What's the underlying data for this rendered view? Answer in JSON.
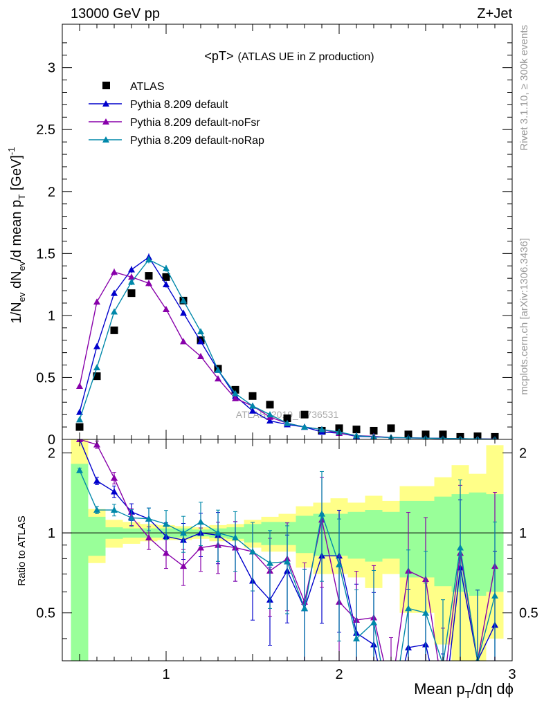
{
  "header": {
    "left": "13000 GeV pp",
    "right": "Z+Jet"
  },
  "side": {
    "rivet": "Rivet 3.1.10, ≥ 300k events",
    "mcplots": "mcplots.cern.ch [arXiv:1306.3436]"
  },
  "watermark": "ATLAS_2019_I1736531",
  "colors": {
    "ATLAS": "#000000",
    "default": "#0000cc",
    "noFsr": "#8800aa",
    "noRap": "#0088aa",
    "band_outer": "#ffff88",
    "band_inner": "#99ff99"
  },
  "chart_data": [
    {
      "type": "line",
      "title": "<pT>",
      "subtitle": "(ATLAS UE in Z production)",
      "ylabel_parts": {
        "a": "1/N",
        "b": "ev",
        "c": " dN",
        "d": "ev",
        "e": "/d mean p",
        "f": "T",
        "g": " [GeV]",
        "h": "-1"
      },
      "xlim": [
        0.4,
        3.0
      ],
      "ylim": [
        0,
        3.35
      ],
      "yticks": [
        0,
        0.5,
        1,
        1.5,
        2,
        2.5,
        3
      ],
      "ytick_labels": [
        "0",
        "0.5",
        "1",
        "1.5",
        "2",
        "2.5",
        "3"
      ],
      "x": [
        0.5,
        0.6,
        0.7,
        0.8,
        0.9,
        1.0,
        1.1,
        1.2,
        1.3,
        1.4,
        1.5,
        1.6,
        1.7,
        1.8,
        1.9,
        2.0,
        2.1,
        2.2,
        2.3,
        2.4,
        2.5,
        2.6,
        2.7,
        2.8,
        2.9
      ],
      "series": [
        {
          "name": "ATLAS",
          "marker": "square",
          "values": [
            0.1,
            0.51,
            0.88,
            1.18,
            1.32,
            1.31,
            1.12,
            0.8,
            0.57,
            0.4,
            0.35,
            0.28,
            0.17,
            0.2,
            0.07,
            0.09,
            0.08,
            0.07,
            0.09,
            0.04,
            0.04,
            0.04,
            0.02,
            0.025,
            0.02
          ]
        },
        {
          "name": "Pythia 8.209 default",
          "marker": "triangle",
          "values": [
            0.22,
            0.75,
            1.18,
            1.37,
            1.47,
            1.25,
            1.02,
            0.79,
            0.56,
            0.35,
            0.23,
            0.15,
            0.12,
            0.1,
            0.06,
            0.05,
            0.025,
            0.02,
            0.015,
            0.012,
            0.01,
            0.008,
            0.005,
            0.004,
            0.002
          ]
        },
        {
          "name": "Pythia 8.209 default-noFsr",
          "marker": "triangle",
          "values": [
            0.43,
            1.11,
            1.35,
            1.31,
            1.26,
            1.05,
            0.79,
            0.67,
            0.49,
            0.33,
            0.27,
            0.18,
            0.13,
            0.1,
            0.08,
            0.05,
            0.03,
            0.025,
            0.015,
            0.012,
            0.01,
            0.008,
            0.005,
            0.004,
            0.003
          ]
        },
        {
          "name": "Pythia 8.209 default-noRap",
          "marker": "triangle",
          "values": [
            0.16,
            0.58,
            1.03,
            1.27,
            1.45,
            1.38,
            1.12,
            0.87,
            0.56,
            0.37,
            0.27,
            0.2,
            0.13,
            0.1,
            0.08,
            0.06,
            0.03,
            0.02,
            0.015,
            0.012,
            0.01,
            0.008,
            0.006,
            0.004,
            0.002
          ]
        }
      ]
    },
    {
      "type": "line",
      "ylabel": "Ratio to ATLAS",
      "xlabel_parts": {
        "a": "Mean p",
        "b": "T",
        "c": "/dη dϕ"
      },
      "xlim": [
        0.4,
        3.0
      ],
      "ylim": [
        0.33,
        2.25
      ],
      "xticks": [
        1,
        2,
        3
      ],
      "xtick_labels": [
        "1",
        "2",
        "3"
      ],
      "yticks": [
        0.5,
        1,
        2
      ],
      "ytick_labels": [
        "0.5",
        "1",
        "2"
      ],
      "bands": {
        "outer_lo": [
          0.33,
          0.77,
          0.88,
          0.91,
          0.93,
          0.94,
          0.94,
          0.95,
          0.93,
          0.93,
          0.88,
          0.85,
          0.85,
          0.74,
          0.7,
          0.7,
          0.68,
          0.62,
          0.7,
          0.5,
          0.5,
          0.38,
          0.33,
          0.33,
          0.4
        ],
        "outer_hi": [
          2.25,
          1.23,
          1.12,
          1.1,
          1.08,
          1.07,
          1.06,
          1.05,
          1.07,
          1.08,
          1.12,
          1.15,
          1.18,
          1.26,
          1.3,
          1.35,
          1.3,
          1.38,
          1.32,
          1.5,
          1.5,
          1.62,
          1.8,
          1.67,
          2.14
        ],
        "inner_lo": [
          0.33,
          0.82,
          0.95,
          0.96,
          0.96,
          0.96,
          0.96,
          0.97,
          0.96,
          0.95,
          0.92,
          0.9,
          0.9,
          0.84,
          0.82,
          0.82,
          0.8,
          0.78,
          0.8,
          0.68,
          0.68,
          0.63,
          0.6,
          0.58,
          0.6
        ],
        "inner_hi": [
          1.82,
          1.15,
          1.05,
          1.04,
          1.04,
          1.04,
          1.04,
          1.03,
          1.04,
          1.05,
          1.08,
          1.1,
          1.1,
          1.16,
          1.18,
          1.18,
          1.2,
          1.22,
          1.2,
          1.32,
          1.32,
          1.37,
          1.4,
          1.42,
          1.4
        ]
      },
      "series": [
        {
          "name": "Pythia 8.209 default",
          "values": [
            2.25,
            1.57,
            1.43,
            1.2,
            1.13,
            0.97,
            0.94,
            1.0,
            0.98,
            0.88,
            0.66,
            0.56,
            0.72,
            0.52,
            0.82,
            0.82,
            0.42,
            0.38,
            0.2,
            0.37,
            0.38,
            0.2,
            0.74,
            0.33,
            0.45
          ]
        },
        {
          "name": "Pythia 8.209 default-noFsr",
          "values": [
            2.25,
            2.15,
            1.61,
            1.15,
            0.96,
            0.84,
            0.75,
            0.88,
            0.9,
            0.88,
            0.85,
            0.72,
            0.8,
            0.55,
            1.12,
            0.55,
            0.47,
            0.48,
            0.25,
            0.72,
            0.67,
            0.25,
            0.84,
            0.33,
            0.75
          ]
        },
        {
          "name": "Pythia 8.209 default-noRap",
          "values": [
            1.72,
            1.22,
            1.22,
            1.14,
            1.13,
            1.08,
            1.0,
            1.1,
            1.0,
            0.96,
            0.85,
            0.77,
            0.78,
            0.52,
            1.18,
            0.76,
            0.4,
            0.46,
            0.2,
            0.52,
            0.5,
            0.32,
            0.88,
            0.33,
            0.58
          ]
        }
      ]
    }
  ]
}
